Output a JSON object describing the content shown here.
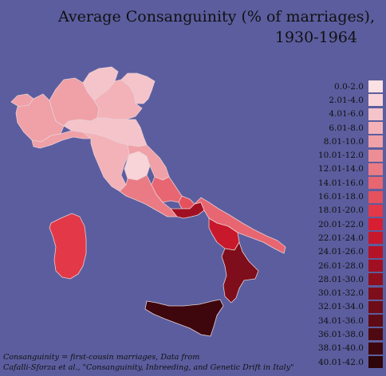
{
  "title": {
    "line1": "Average Consanguinity (% of marriages),",
    "line2": "1930-1964"
  },
  "legend": [
    {
      "label": "0.0-2.0",
      "color": "#fbe0e4"
    },
    {
      "label": "2.01-4.0",
      "color": "#f8d3d8"
    },
    {
      "label": "4.01-6.0",
      "color": "#f5c3ca"
    },
    {
      "label": "6.01-8.0",
      "color": "#f3b2b8"
    },
    {
      "label": "8.01-10.0",
      "color": "#f0a0a7"
    },
    {
      "label": "10.01-12.0",
      "color": "#ed8e96"
    },
    {
      "label": "12.01-14.0",
      "color": "#ea7b84"
    },
    {
      "label": "14.01-16.0",
      "color": "#e86671"
    },
    {
      "label": "16.01-18.0",
      "color": "#e5515d"
    },
    {
      "label": "18.01-20.0",
      "color": "#e23848"
    },
    {
      "label": "20.01-22.0",
      "color": "#d81e32"
    },
    {
      "label": "22.01-24.0",
      "color": "#c8182b"
    },
    {
      "label": "24.01-26.0",
      "color": "#b51326"
    },
    {
      "label": "26.01-28.0",
      "color": "#a11022"
    },
    {
      "label": "28.01-30.0",
      "color": "#8f0f1e"
    },
    {
      "label": "30.01-32.0",
      "color": "#7e0e1b"
    },
    {
      "label": "32.01-34.0",
      "color": "#6e0d18"
    },
    {
      "label": "34.01-36.0",
      "color": "#5e0b15"
    },
    {
      "label": "36.01-38.0",
      "color": "#4e0911"
    },
    {
      "label": "38.01-40.0",
      "color": "#3e070e"
    },
    {
      "label": "40.01-42.0",
      "color": "#2e050a"
    }
  ],
  "regions": [
    {
      "name": "Valle d'Aosta",
      "range": "8.01-10.0",
      "color": "#f0a0a7"
    },
    {
      "name": "Piedmont",
      "range": "8.01-10.0",
      "color": "#f0a0a7"
    },
    {
      "name": "Liguria",
      "range": "8.01-10.0",
      "color": "#f0a0a7"
    },
    {
      "name": "Lombardy",
      "range": "8.01-10.0",
      "color": "#f0a0a7"
    },
    {
      "name": "Trentino-Alto Adige",
      "range": "4.01-6.0",
      "color": "#f5c3ca"
    },
    {
      "name": "Veneto",
      "range": "6.01-8.0",
      "color": "#f3b2b8"
    },
    {
      "name": "Friuli-Venezia Giulia",
      "range": "4.01-6.0",
      "color": "#f5c3ca"
    },
    {
      "name": "Emilia-Romagna",
      "range": "4.01-6.0",
      "color": "#f5c3ca"
    },
    {
      "name": "Tuscany",
      "range": "6.01-8.0",
      "color": "#f3b2b8"
    },
    {
      "name": "Umbria",
      "range": "2.01-4.0",
      "color": "#f8d3d8"
    },
    {
      "name": "Marche",
      "range": "8.01-10.0",
      "color": "#f0a0a7"
    },
    {
      "name": "Lazio",
      "range": "12.01-14.0",
      "color": "#ea7b84"
    },
    {
      "name": "Abruzzo",
      "range": "14.01-16.0",
      "color": "#e86671"
    },
    {
      "name": "Molise",
      "range": "16.01-18.0",
      "color": "#e5515d"
    },
    {
      "name": "Campania",
      "range": "26.01-28.0",
      "color": "#a11022"
    },
    {
      "name": "Apulia",
      "range": "14.01-16.0",
      "color": "#e86671"
    },
    {
      "name": "Basilicata",
      "range": "22.01-24.0",
      "color": "#c8182b"
    },
    {
      "name": "Calabria",
      "range": "30.01-32.0",
      "color": "#7e0e1b"
    },
    {
      "name": "Sicily",
      "range": "38.01-40.0",
      "color": "#3e070e"
    },
    {
      "name": "Sardinia",
      "range": "18.01-20.0",
      "color": "#e23848"
    }
  ],
  "footnote": {
    "line1": "Consanguinity = first-cousin marriages, Data from",
    "line2": "Cafalli-Sforza et al., \"Consanguinity, Inbreeding, and Genetic Drift in Italy\""
  }
}
